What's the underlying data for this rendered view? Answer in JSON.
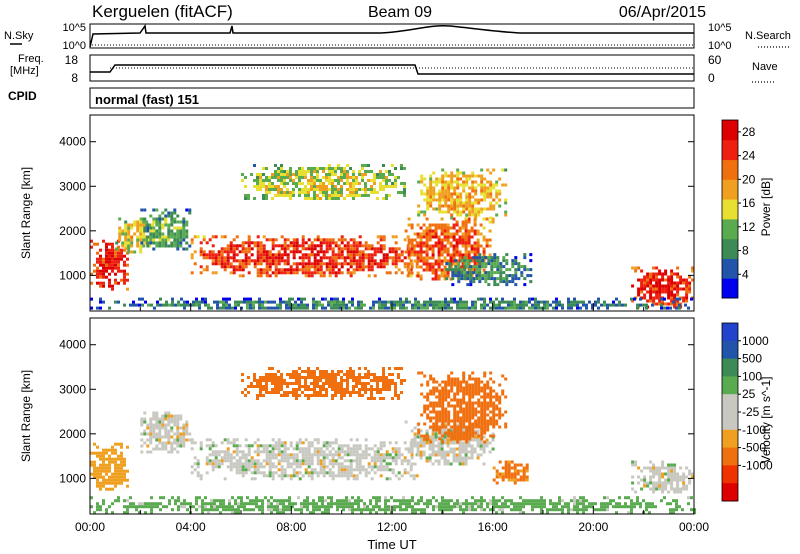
{
  "header": {
    "station": "Kerguelen (fitACF)",
    "beam": "Beam 09",
    "date": "06/Apr/2015"
  },
  "top_panels": {
    "nsky_label": "N.Sky",
    "nsearch_label": "N.Search",
    "noise_left_ticks": [
      "10^5",
      "10^0"
    ],
    "noise_right_ticks": [
      "10^5",
      "10^0"
    ],
    "freq_label_line1": "Freq.",
    "freq_label_line2": "[MHz]",
    "freq_ticks": [
      "18",
      "8"
    ],
    "nave_label": "Nave",
    "nave_ticks": [
      "60",
      "0"
    ],
    "cpid_label": "CPID",
    "cpid_text": "normal (fast) 151"
  },
  "colors": {
    "power_scale": [
      "#0000ee",
      "#2255aa",
      "#3c8a55",
      "#5aaa50",
      "#e8e030",
      "#f0a020",
      "#f07010",
      "#ee2010",
      "#dd0000"
    ],
    "velocity_scale": [
      "#dd0000",
      "#ee3300",
      "#f07010",
      "#f0a020",
      "#c8c8c0",
      "#c8c8c0",
      "#5aaa50",
      "#3c8a55",
      "#2255aa",
      "#2244cc"
    ],
    "ground_scatter": "#b4b4b4"
  },
  "chart_data": [
    {
      "type": "heatmap",
      "panel": "power",
      "xlabel": "",
      "ylabel": "Slant Range [km]",
      "x_range_hours": [
        0,
        24
      ],
      "ylim": [
        200,
        4600
      ],
      "y_ticks": [
        "1000",
        "2000",
        "3000",
        "4000"
      ],
      "colorbar_label": "Power [dB]",
      "colorbar_ticks": [
        "4",
        "8",
        "12",
        "16",
        "20",
        "24",
        "28"
      ],
      "colorbar_range": [
        0,
        30
      ],
      "regions": [
        {
          "t": [
            0.0,
            1.5
          ],
          "r": [
            700,
            1800
          ],
          "value": 27
        },
        {
          "t": [
            1.0,
            2.5
          ],
          "r": [
            1500,
            2300
          ],
          "value": 17
        },
        {
          "t": [
            2.0,
            4.0
          ],
          "r": [
            1600,
            2500
          ],
          "value": 12
        },
        {
          "t": [
            4.0,
            13.0
          ],
          "r": [
            1000,
            1900
          ],
          "value": 26
        },
        {
          "t": [
            6.0,
            12.5
          ],
          "r": [
            2700,
            3500
          ],
          "value": 16
        },
        {
          "t": [
            12.5,
            16.0
          ],
          "r": [
            900,
            2300
          ],
          "value": 24
        },
        {
          "t": [
            13.0,
            16.5
          ],
          "r": [
            2300,
            3400
          ],
          "value": 19
        },
        {
          "t": [
            14.0,
            17.5
          ],
          "r": [
            800,
            1500
          ],
          "value": 10
        },
        {
          "t": [
            21.5,
            24.0
          ],
          "r": [
            300,
            1200
          ],
          "value": 27
        },
        {
          "t": [
            0.0,
            24.0
          ],
          "r": [
            250,
            500
          ],
          "value": 9
        }
      ]
    },
    {
      "type": "heatmap",
      "panel": "velocity",
      "xlabel": "Time UT",
      "ylabel": "Slant Range [km]",
      "x_range_hours": [
        0,
        24
      ],
      "x_ticks": [
        "00:00",
        "04:00",
        "08:00",
        "12:00",
        "16:00",
        "20:00",
        "00:00"
      ],
      "ylim": [
        200,
        4600
      ],
      "y_ticks": [
        "1000",
        "2000",
        "3000",
        "4000"
      ],
      "colorbar_label": "Velocity [m s^-1]",
      "colorbar_ticks": [
        "1000",
        "500",
        "100",
        "25",
        "-25",
        "-100",
        "-500",
        "-1000"
      ],
      "regions": [
        {
          "t": [
            0.0,
            1.5
          ],
          "r": [
            700,
            1800
          ],
          "value": -60
        },
        {
          "t": [
            2.0,
            4.0
          ],
          "r": [
            1600,
            2500
          ],
          "value": 0
        },
        {
          "t": [
            4.0,
            13.0
          ],
          "r": [
            1000,
            1900
          ],
          "value": 0
        },
        {
          "t": [
            6.0,
            12.5
          ],
          "r": [
            2800,
            3500
          ],
          "value": -200
        },
        {
          "t": [
            12.5,
            16.0
          ],
          "r": [
            1300,
            2300
          ],
          "value": 0
        },
        {
          "t": [
            13.0,
            16.5
          ],
          "r": [
            1800,
            3400
          ],
          "value": -150
        },
        {
          "t": [
            16.0,
            17.5
          ],
          "r": [
            900,
            1400
          ],
          "value": -120
        },
        {
          "t": [
            21.5,
            24.0
          ],
          "r": [
            700,
            1400
          ],
          "value": 0
        },
        {
          "t": [
            0.0,
            24.0
          ],
          "r": [
            250,
            600
          ],
          "value": 50
        }
      ]
    }
  ]
}
